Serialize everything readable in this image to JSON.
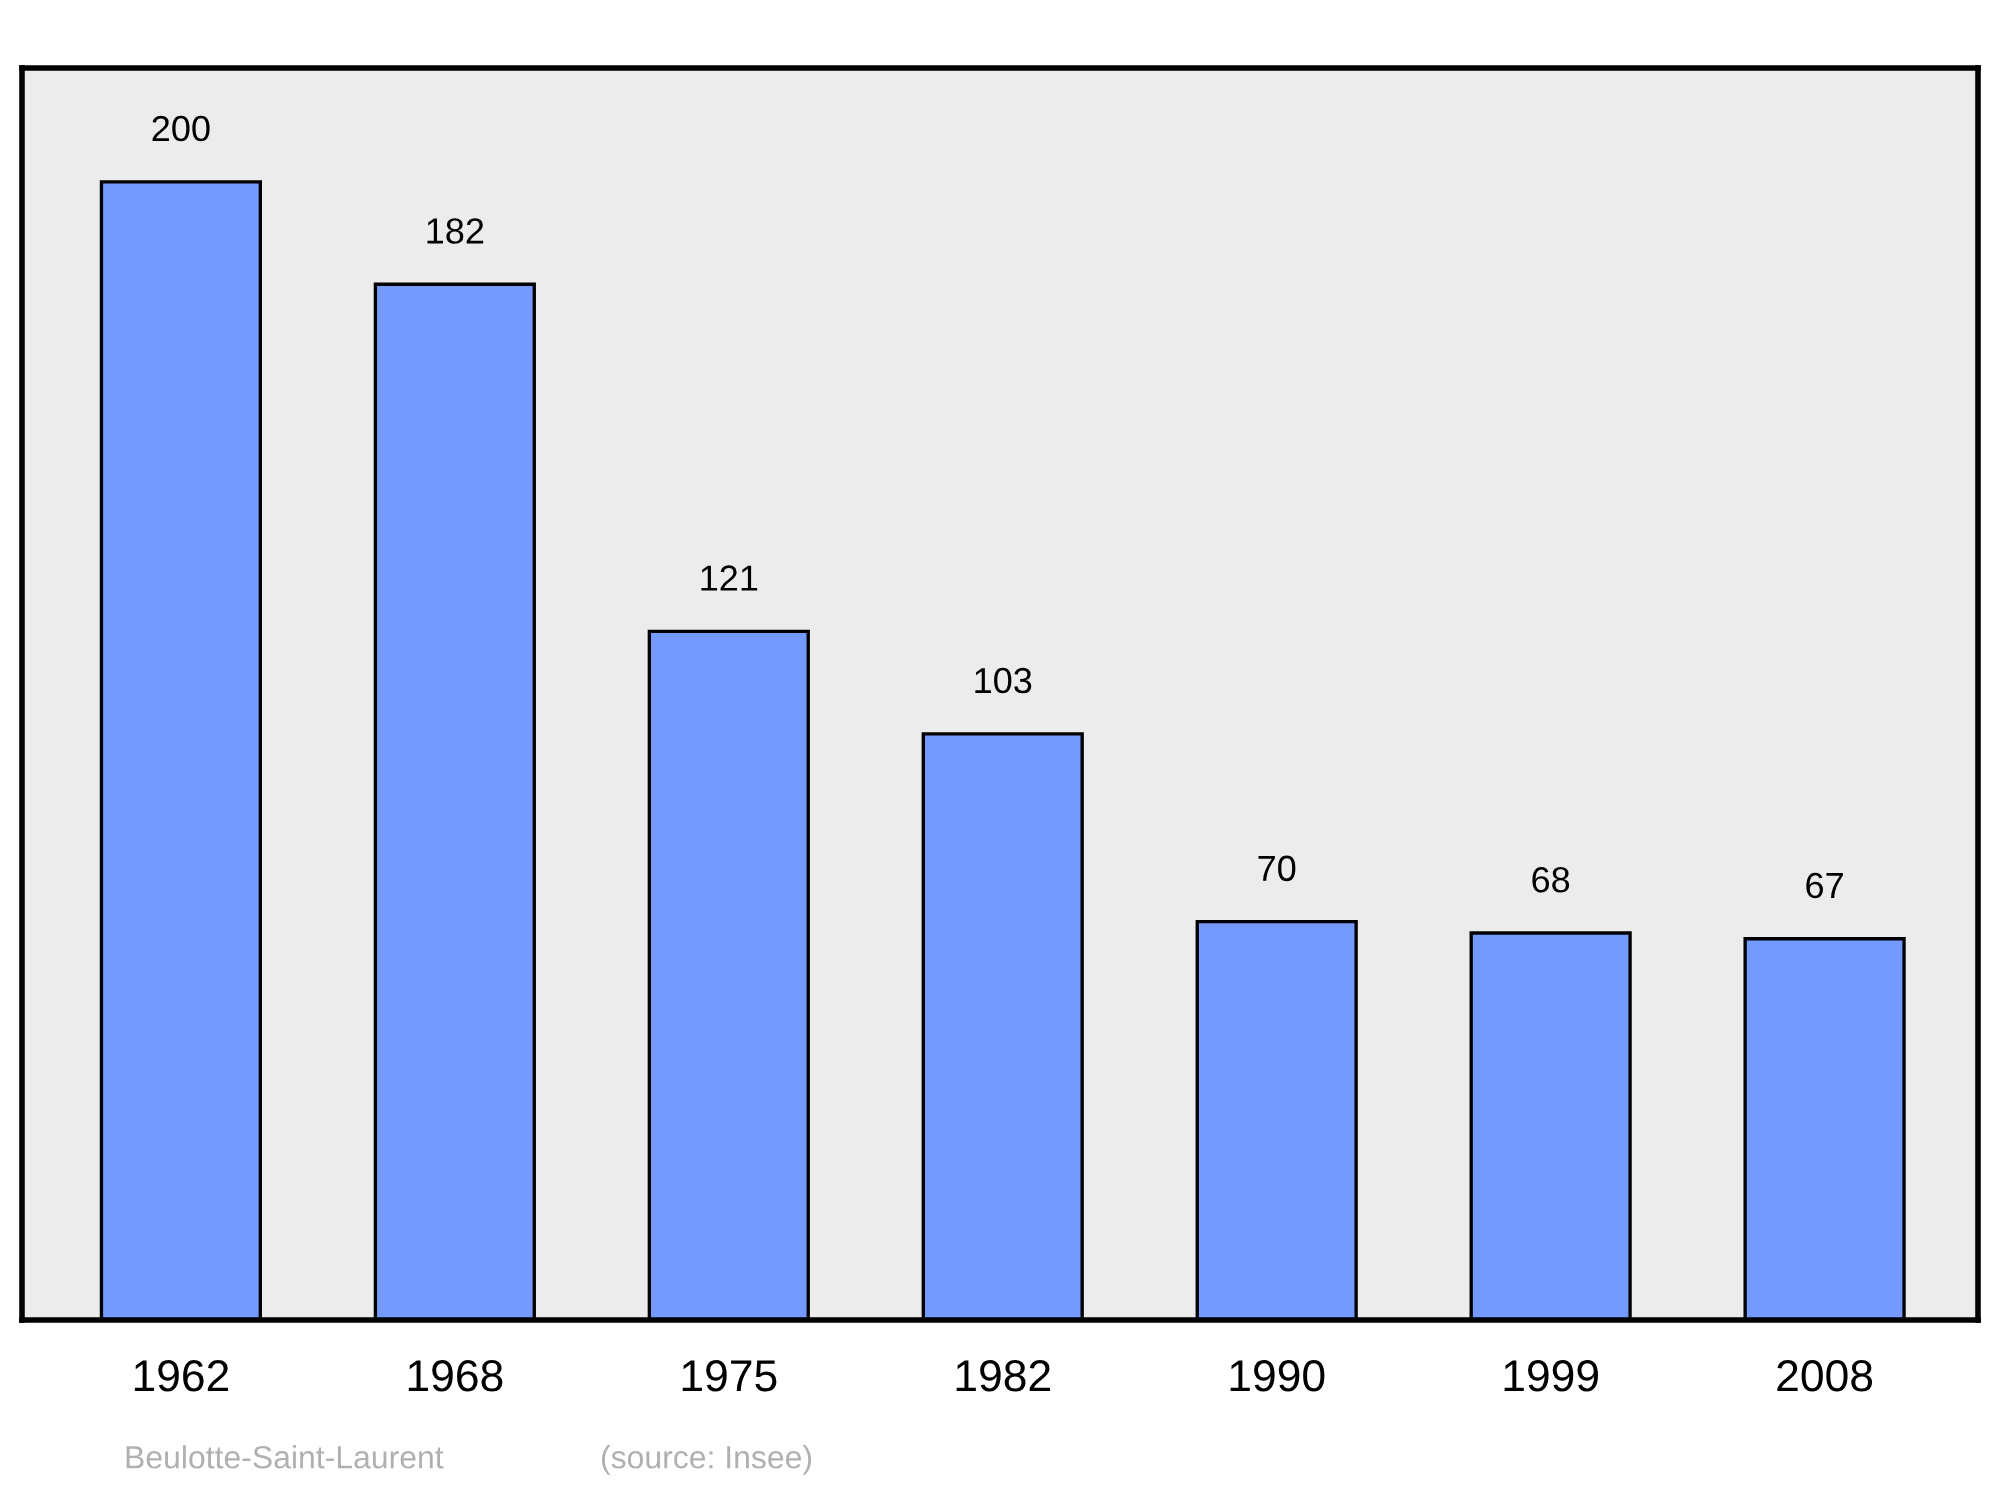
{
  "chart_data": {
    "type": "bar",
    "categories": [
      "1962",
      "1968",
      "1975",
      "1982",
      "1990",
      "1999",
      "2008"
    ],
    "values": [
      200,
      182,
      121,
      103,
      70,
      68,
      67
    ],
    "color": "#7499ff",
    "ylim": [
      0,
      220
    ],
    "data_labels": true,
    "grid": false,
    "legend": false,
    "annotations": [
      "Beulotte-Saint-Laurent",
      "(source: Insee)"
    ]
  }
}
